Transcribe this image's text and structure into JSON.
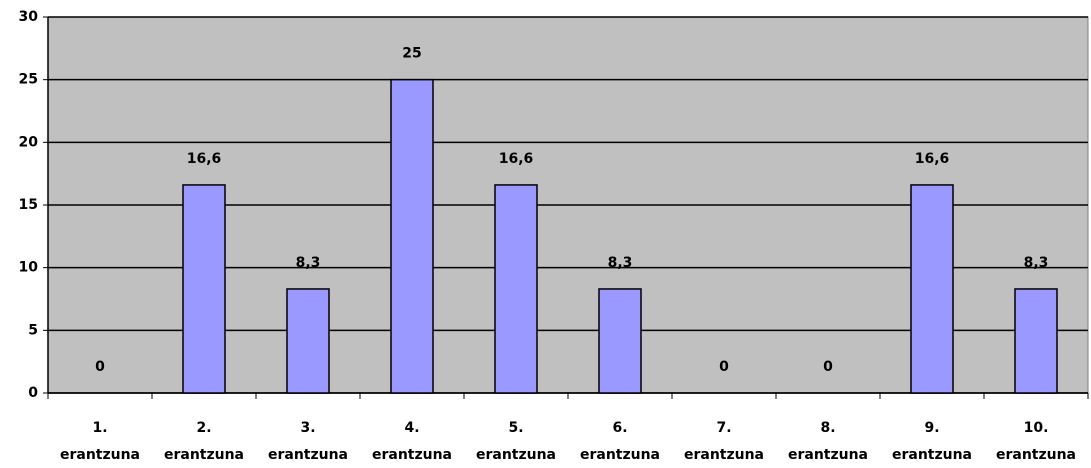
{
  "chart_data": {
    "type": "bar",
    "categories": [
      [
        "1.",
        "erantzuna"
      ],
      [
        "2.",
        "erantzuna"
      ],
      [
        "3.",
        "erantzuna"
      ],
      [
        "4.",
        "erantzuna"
      ],
      [
        "5.",
        "erantzuna"
      ],
      [
        "6.",
        "erantzuna"
      ],
      [
        "7.",
        "erantzuna"
      ],
      [
        "8.",
        "erantzuna"
      ],
      [
        "9.",
        "erantzuna"
      ],
      [
        "10.",
        "erantzuna"
      ]
    ],
    "values": [
      0,
      16.6,
      8.3,
      25,
      16.6,
      8.3,
      0,
      0,
      16.6,
      8.3
    ],
    "value_labels": [
      "0",
      "16,6",
      "8,3",
      "25",
      "16,6",
      "8,3",
      "0",
      "0",
      "16,6",
      "8,3"
    ],
    "color": "#9999ff",
    "ylim": [
      0,
      30
    ],
    "yticks": [
      0,
      5,
      10,
      15,
      20,
      25,
      30
    ],
    "grid": true
  }
}
